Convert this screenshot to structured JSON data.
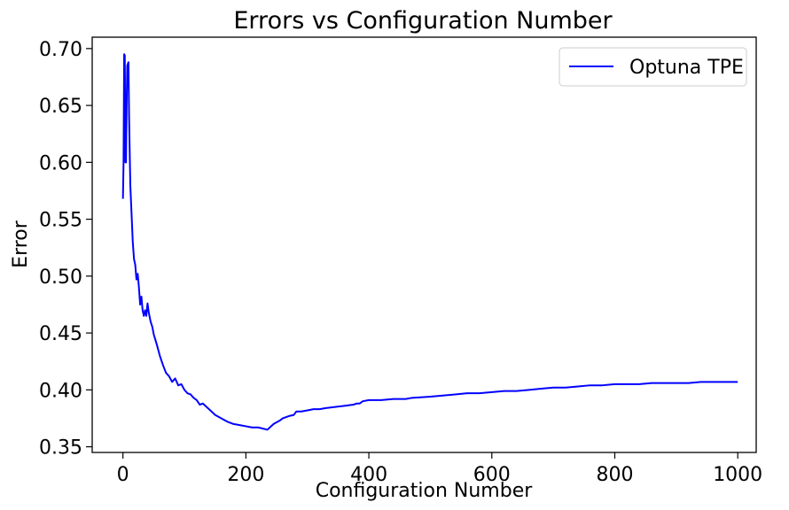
{
  "chart_data": {
    "type": "line",
    "title": "Errors vs Configuration Number",
    "xlabel": "Configuration Number",
    "ylabel": "Error",
    "xlim": [
      -50,
      1030
    ],
    "ylim": [
      0.345,
      0.71
    ],
    "xticks": [
      0,
      200,
      400,
      600,
      800,
      1000
    ],
    "xtick_labels": [
      "0",
      "200",
      "400",
      "600",
      "800",
      "1000"
    ],
    "yticks": [
      0.35,
      0.4,
      0.45,
      0.5,
      0.55,
      0.6,
      0.65,
      0.7
    ],
    "ytick_labels": [
      "0.35",
      "0.40",
      "0.45",
      "0.50",
      "0.55",
      "0.60",
      "0.65",
      "0.70"
    ],
    "grid": false,
    "legend_position": "top-right",
    "series": [
      {
        "name": "Optuna TPE",
        "color": "#0000ff",
        "x": [
          0,
          1,
          2,
          3,
          4,
          5,
          6,
          7,
          9,
          10,
          12,
          14,
          16,
          18,
          20,
          22,
          24,
          26,
          28,
          30,
          32,
          34,
          36,
          38,
          40,
          42,
          45,
          48,
          50,
          55,
          60,
          65,
          70,
          75,
          80,
          85,
          90,
          95,
          100,
          105,
          110,
          115,
          120,
          125,
          130,
          140,
          150,
          160,
          170,
          180,
          190,
          200,
          210,
          220,
          235,
          245,
          255,
          260,
          270,
          278,
          282,
          290,
          300,
          310,
          320,
          330,
          345,
          360,
          375,
          380,
          385,
          390,
          400,
          420,
          440,
          460,
          470,
          500,
          520,
          540,
          560,
          580,
          600,
          620,
          640,
          660,
          680,
          700,
          720,
          740,
          760,
          780,
          800,
          820,
          840,
          860,
          880,
          900,
          920,
          940,
          960,
          980,
          1000
        ],
        "y": [
          0.568,
          0.6,
          0.695,
          0.694,
          0.6,
          0.6,
          0.65,
          0.685,
          0.688,
          0.64,
          0.58,
          0.555,
          0.53,
          0.515,
          0.51,
          0.497,
          0.502,
          0.49,
          0.475,
          0.482,
          0.47,
          0.465,
          0.47,
          0.465,
          0.476,
          0.468,
          0.46,
          0.455,
          0.449,
          0.44,
          0.43,
          0.422,
          0.415,
          0.412,
          0.407,
          0.41,
          0.404,
          0.405,
          0.4,
          0.397,
          0.396,
          0.393,
          0.391,
          0.387,
          0.388,
          0.383,
          0.378,
          0.375,
          0.372,
          0.37,
          0.369,
          0.368,
          0.367,
          0.367,
          0.365,
          0.37,
          0.373,
          0.375,
          0.377,
          0.378,
          0.381,
          0.381,
          0.382,
          0.383,
          0.383,
          0.384,
          0.385,
          0.386,
          0.387,
          0.388,
          0.388,
          0.39,
          0.391,
          0.391,
          0.392,
          0.392,
          0.393,
          0.394,
          0.395,
          0.396,
          0.397,
          0.397,
          0.398,
          0.399,
          0.399,
          0.4,
          0.401,
          0.402,
          0.402,
          0.403,
          0.404,
          0.404,
          0.405,
          0.405,
          0.405,
          0.406,
          0.406,
          0.406,
          0.406,
          0.407,
          0.407,
          0.407,
          0.407
        ]
      }
    ]
  }
}
